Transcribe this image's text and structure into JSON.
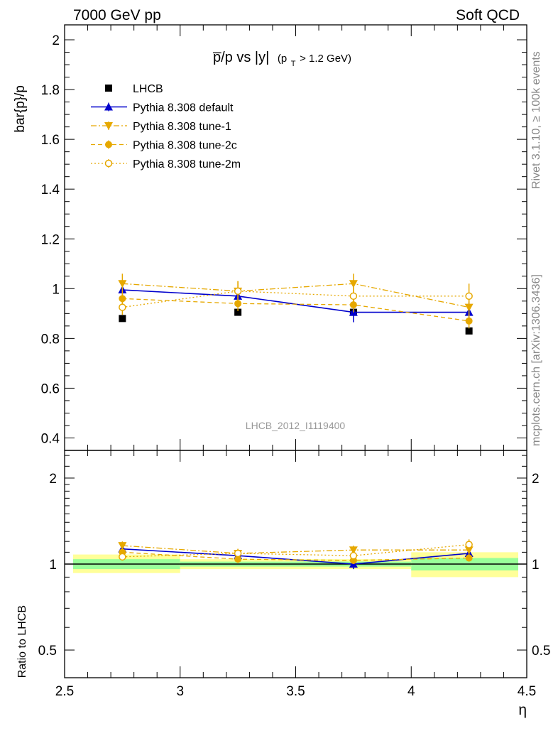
{
  "header": {
    "left": "7000 GeV pp",
    "right": "Soft QCD"
  },
  "side_text": {
    "rivet": "Rivet 3.1.10, ≥ 100k events",
    "source": "mcplots.cern.ch [arXiv:1306.3436]"
  },
  "plot_title": {
    "main": "p̅/p vs |y|",
    "cut_open": "(p",
    "cut_sub": "T",
    "cut_rest": " > 1.2 GeV)"
  },
  "analysis_label": "LHCB_2012_I1119400",
  "colors": {
    "data": "#000000",
    "default": "#0000cc",
    "tunes": "#e6a800",
    "band_inner": "#99ff99",
    "band_outer": "#ffff99"
  },
  "chart_data": [
    {
      "type": "scatter",
      "panel": "main",
      "xlabel": "",
      "ylabel": "bar{p}/p",
      "xlim": [
        2.5,
        4.5
      ],
      "ylim": [
        0.35,
        2.06
      ],
      "yticks": [
        0.4,
        0.6,
        0.8,
        1,
        1.2,
        1.4,
        1.6,
        1.8,
        2
      ],
      "ytick_labels": [
        "0.4",
        "0.6",
        "0.8",
        "1",
        "1.2",
        "1.4",
        "1.6",
        "1.8",
        "2"
      ],
      "legend_position": "top-left",
      "x": [
        2.75,
        3.25,
        3.75,
        4.25
      ],
      "series": [
        {
          "name": "LHCB",
          "style": "data",
          "values": [
            0.88,
            0.905,
            0.905,
            0.83
          ],
          "errors": [
            0.01,
            0.01,
            0.01,
            0.01
          ]
        },
        {
          "name": "Pythia 8.308 default",
          "style": "default",
          "values": [
            0.995,
            0.97,
            0.905,
            0.905
          ],
          "errors": [
            0.03,
            0.03,
            0.04,
            0.04
          ]
        },
        {
          "name": "Pythia 8.308 tune-1",
          "style": "tune1",
          "values": [
            1.02,
            0.99,
            1.02,
            0.925
          ],
          "errors": [
            0.04,
            0.04,
            0.04,
            0.04
          ]
        },
        {
          "name": "Pythia 8.308 tune-2c",
          "style": "tune2c",
          "values": [
            0.96,
            0.94,
            0.935,
            0.87
          ],
          "errors": [
            0.03,
            0.03,
            0.03,
            0.03
          ]
        },
        {
          "name": "Pythia 8.308 tune-2m",
          "style": "tune2m",
          "values": [
            0.925,
            0.99,
            0.97,
            0.97
          ],
          "errors": [
            0.03,
            0.04,
            0.04,
            0.05
          ]
        }
      ]
    },
    {
      "type": "scatter",
      "panel": "ratio",
      "xlabel": "η",
      "ylabel": "Ratio to LHCB",
      "xlim": [
        2.5,
        4.5
      ],
      "ylim": [
        0.4,
        2.5
      ],
      "log_y": true,
      "xticks": [
        2.5,
        3,
        3.5,
        4,
        4.5
      ],
      "xtick_labels": [
        "2.5",
        "3",
        "3.5",
        "4",
        "4.5"
      ],
      "yticks": [
        0.5,
        1,
        2
      ],
      "ytick_labels": [
        "0.5",
        "1",
        "2"
      ],
      "x": [
        2.75,
        3.25,
        3.75,
        4.25
      ],
      "bands": {
        "edges": [
          2.5,
          3.0,
          3.5,
          4.0,
          4.5
        ],
        "outer_lo": [
          0.93,
          0.96,
          0.96,
          0.9
        ],
        "outer_hi": [
          1.08,
          1.04,
          1.04,
          1.1
        ],
        "inner_lo": [
          0.96,
          0.98,
          0.98,
          0.95
        ],
        "inner_hi": [
          1.04,
          1.02,
          1.02,
          1.05
        ]
      },
      "series": [
        {
          "name": "Pythia 8.308 default",
          "style": "default",
          "values": [
            1.13,
            1.07,
            1.0,
            1.09
          ],
          "errors": [
            0.03,
            0.03,
            0.04,
            0.04
          ]
        },
        {
          "name": "Pythia 8.308 tune-1",
          "style": "tune1",
          "values": [
            1.16,
            1.09,
            1.12,
            1.12
          ],
          "errors": [
            0.04,
            0.04,
            0.04,
            0.04
          ]
        },
        {
          "name": "Pythia 8.308 tune-2c",
          "style": "tune2c",
          "values": [
            1.1,
            1.04,
            1.03,
            1.05
          ],
          "errors": [
            0.03,
            0.03,
            0.03,
            0.03
          ]
        },
        {
          "name": "Pythia 8.308 tune-2m",
          "style": "tune2m",
          "values": [
            1.06,
            1.09,
            1.07,
            1.17
          ],
          "errors": [
            0.03,
            0.04,
            0.04,
            0.05
          ]
        }
      ]
    }
  ]
}
